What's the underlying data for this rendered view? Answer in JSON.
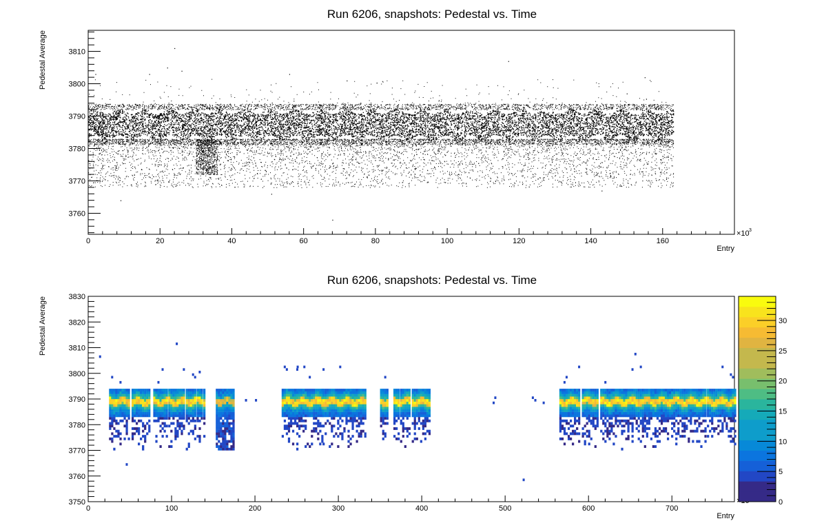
{
  "chart_data": [
    {
      "type": "scatter",
      "title": "Run 6206, snapshots: Pedestal vs. Time",
      "xlabel": "Entry",
      "ylabel": "Pedestal Average",
      "x_exponent_label": "×10",
      "x_exponent": "3",
      "xlim": [
        0,
        180
      ],
      "ylim": [
        3753.5,
        3816.5
      ],
      "x_ticks": [
        0,
        20,
        40,
        60,
        80,
        100,
        120,
        140,
        160
      ],
      "y_ticks": [
        3760,
        3770,
        3780,
        3790,
        3800,
        3810
      ],
      "data_x_range": [
        0,
        163
      ],
      "band_y_range": [
        3783,
        3792
      ],
      "tail_y_range": [
        3768,
        3783
      ],
      "outlier_points": [
        [
          24,
          3811
        ],
        [
          22,
          3805
        ],
        [
          26,
          3804
        ],
        [
          17,
          3803
        ],
        [
          2,
          3803
        ],
        [
          56,
          3803
        ],
        [
          72,
          3801
        ],
        [
          117,
          3807
        ],
        [
          155,
          3802
        ],
        [
          150,
          3797
        ],
        [
          9,
          3764
        ],
        [
          68,
          3758
        ],
        [
          51,
          3766
        ],
        [
          143,
          3767
        ]
      ],
      "grid": false
    },
    {
      "type": "heatmap",
      "title": "Run 6206, snapshots: Pedestal vs. Time",
      "xlabel": "Entry",
      "ylabel": "Pedestal Average",
      "x_exponent_label": "×10",
      "x_exponent": "3",
      "xlim": [
        0,
        775
      ],
      "ylim": [
        3750,
        3830
      ],
      "x_ticks": [
        0,
        100,
        200,
        300,
        400,
        500,
        600,
        700
      ],
      "y_ticks": [
        3750,
        3760,
        3770,
        3780,
        3790,
        3800,
        3810,
        3820,
        3830
      ],
      "colorbar_range": [
        0,
        34
      ],
      "colorbar_ticks": [
        0,
        5,
        10,
        15,
        20,
        25,
        30
      ],
      "active_segments": [
        [
          25,
          50
        ],
        [
          52,
          73
        ],
        [
          78,
          95
        ],
        [
          96,
          115
        ],
        [
          117,
          128
        ],
        [
          130,
          137
        ],
        [
          138,
          139
        ],
        [
          153,
          175
        ],
        [
          232,
          280
        ],
        [
          281,
          333
        ],
        [
          350,
          358
        ],
        [
          366,
          372
        ],
        [
          374,
          386
        ],
        [
          388,
          410
        ],
        [
          565,
          590
        ],
        [
          592,
          605
        ],
        [
          607,
          612
        ],
        [
          614,
          740
        ],
        [
          742,
          775
        ]
      ],
      "isolated_cells": [
        [
          532,
          3790
        ],
        [
          535,
          3789
        ],
        [
          545,
          3788
        ],
        [
          487,
          3790
        ],
        [
          485,
          3788
        ],
        [
          200,
          3789
        ],
        [
          188,
          3789
        ],
        [
          105,
          3811
        ],
        [
          521,
          3758
        ],
        [
          45,
          3764
        ],
        [
          13,
          3806
        ],
        [
          655,
          3807
        ],
        [
          250,
          3802
        ],
        [
          258,
          3802
        ]
      ],
      "grid": false
    }
  ]
}
